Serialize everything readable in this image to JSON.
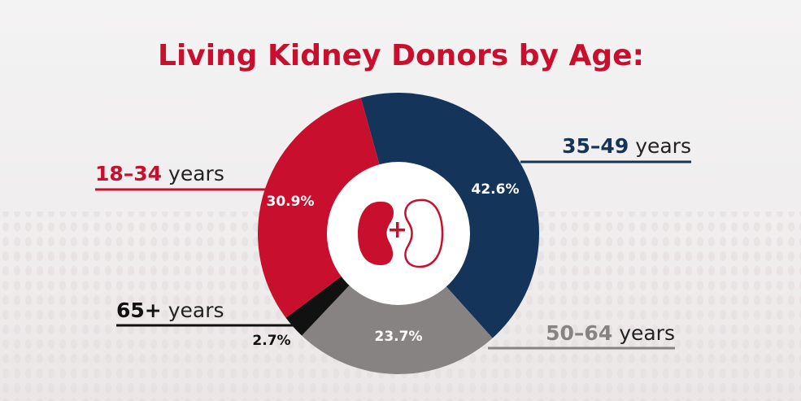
{
  "chart_data": {
    "type": "pie",
    "title": "Living Kidney Donors by Age:",
    "unit_suffix": "years",
    "slices": [
      {
        "name": "35–49",
        "value": 42.6,
        "label": "42.6%",
        "color": "#14345a"
      },
      {
        "name": "50–64",
        "value": 23.7,
        "label": "23.7%",
        "color": "#888383"
      },
      {
        "name": "65+",
        "value": 2.7,
        "label": "2.7%",
        "color": "#111111"
      },
      {
        "name": "18–34",
        "value": 30.9,
        "label": "30.9%",
        "color": "#c8102e"
      }
    ],
    "center_icon": "kidney-plus-icon"
  }
}
